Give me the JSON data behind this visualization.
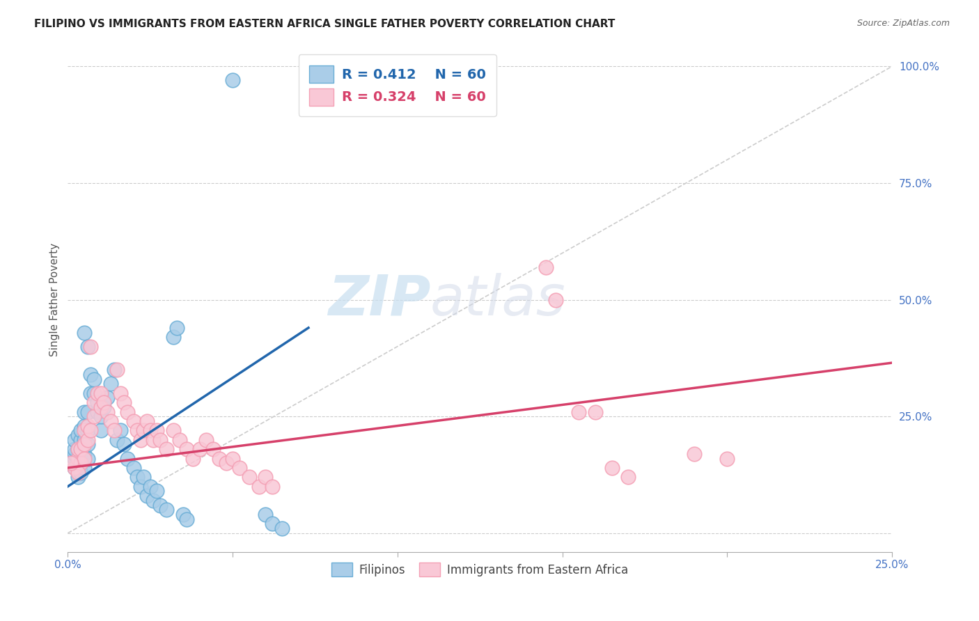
{
  "title": "FILIPINO VS IMMIGRANTS FROM EASTERN AFRICA SINGLE FATHER POVERTY CORRELATION CHART",
  "source": "Source: ZipAtlas.com",
  "ylabel": "Single Father Poverty",
  "xlim": [
    0.0,
    0.25
  ],
  "ylim": [
    -0.04,
    1.04
  ],
  "x_ticks": [
    0.0,
    0.05,
    0.1,
    0.15,
    0.2,
    0.25
  ],
  "x_tick_labels": [
    "0.0%",
    "",
    "",
    "",
    "",
    "25.0%"
  ],
  "y_ticks": [
    0.0,
    0.25,
    0.5,
    0.75,
    1.0
  ],
  "y_tick_labels": [
    "",
    "25.0%",
    "50.0%",
    "75.0%",
    "100.0%"
  ],
  "blue_color_face": "#aacde8",
  "blue_color_edge": "#6baed6",
  "pink_color_face": "#f9c8d6",
  "pink_color_edge": "#f4a0b5",
  "blue_line_color": "#2166ac",
  "pink_line_color": "#d6406a",
  "ref_line_color": "#cccccc",
  "grid_color": "#cccccc",
  "blue_scatter": [
    [
      0.002,
      0.14
    ],
    [
      0.002,
      0.16
    ],
    [
      0.002,
      0.17
    ],
    [
      0.002,
      0.18
    ],
    [
      0.002,
      0.2
    ],
    [
      0.003,
      0.12
    ],
    [
      0.003,
      0.14
    ],
    [
      0.003,
      0.16
    ],
    [
      0.003,
      0.18
    ],
    [
      0.003,
      0.21
    ],
    [
      0.004,
      0.13
    ],
    [
      0.004,
      0.15
    ],
    [
      0.004,
      0.17
    ],
    [
      0.004,
      0.2
    ],
    [
      0.004,
      0.22
    ],
    [
      0.005,
      0.14
    ],
    [
      0.005,
      0.17
    ],
    [
      0.005,
      0.2
    ],
    [
      0.005,
      0.23
    ],
    [
      0.005,
      0.26
    ],
    [
      0.006,
      0.16
    ],
    [
      0.006,
      0.19
    ],
    [
      0.006,
      0.22
    ],
    [
      0.006,
      0.26
    ],
    [
      0.007,
      0.3
    ],
    [
      0.007,
      0.34
    ],
    [
      0.008,
      0.3
    ],
    [
      0.008,
      0.33
    ],
    [
      0.009,
      0.26
    ],
    [
      0.009,
      0.28
    ],
    [
      0.01,
      0.22
    ],
    [
      0.01,
      0.25
    ],
    [
      0.011,
      0.27
    ],
    [
      0.012,
      0.29
    ],
    [
      0.013,
      0.32
    ],
    [
      0.014,
      0.35
    ],
    [
      0.015,
      0.2
    ],
    [
      0.016,
      0.22
    ],
    [
      0.017,
      0.19
    ],
    [
      0.018,
      0.16
    ],
    [
      0.02,
      0.14
    ],
    [
      0.021,
      0.12
    ],
    [
      0.022,
      0.1
    ],
    [
      0.023,
      0.12
    ],
    [
      0.024,
      0.08
    ],
    [
      0.025,
      0.1
    ],
    [
      0.026,
      0.07
    ],
    [
      0.027,
      0.09
    ],
    [
      0.028,
      0.06
    ],
    [
      0.03,
      0.05
    ],
    [
      0.032,
      0.42
    ],
    [
      0.033,
      0.44
    ],
    [
      0.05,
      0.97
    ],
    [
      0.005,
      0.43
    ],
    [
      0.006,
      0.4
    ],
    [
      0.035,
      0.04
    ],
    [
      0.036,
      0.03
    ],
    [
      0.06,
      0.04
    ],
    [
      0.062,
      0.02
    ],
    [
      0.065,
      0.01
    ]
  ],
  "pink_scatter": [
    [
      0.002,
      0.14
    ],
    [
      0.003,
      0.16
    ],
    [
      0.003,
      0.18
    ],
    [
      0.004,
      0.15
    ],
    [
      0.004,
      0.18
    ],
    [
      0.005,
      0.16
    ],
    [
      0.005,
      0.19
    ],
    [
      0.005,
      0.22
    ],
    [
      0.006,
      0.2
    ],
    [
      0.006,
      0.23
    ],
    [
      0.007,
      0.22
    ],
    [
      0.007,
      0.4
    ],
    [
      0.008,
      0.25
    ],
    [
      0.008,
      0.28
    ],
    [
      0.009,
      0.3
    ],
    [
      0.01,
      0.27
    ],
    [
      0.01,
      0.3
    ],
    [
      0.011,
      0.28
    ],
    [
      0.012,
      0.26
    ],
    [
      0.013,
      0.24
    ],
    [
      0.014,
      0.22
    ],
    [
      0.015,
      0.35
    ],
    [
      0.016,
      0.3
    ],
    [
      0.017,
      0.28
    ],
    [
      0.018,
      0.26
    ],
    [
      0.02,
      0.24
    ],
    [
      0.021,
      0.22
    ],
    [
      0.022,
      0.2
    ],
    [
      0.023,
      0.22
    ],
    [
      0.024,
      0.24
    ],
    [
      0.025,
      0.22
    ],
    [
      0.026,
      0.2
    ],
    [
      0.027,
      0.22
    ],
    [
      0.028,
      0.2
    ],
    [
      0.03,
      0.18
    ],
    [
      0.032,
      0.22
    ],
    [
      0.034,
      0.2
    ],
    [
      0.036,
      0.18
    ],
    [
      0.038,
      0.16
    ],
    [
      0.04,
      0.18
    ],
    [
      0.042,
      0.2
    ],
    [
      0.044,
      0.18
    ],
    [
      0.046,
      0.16
    ],
    [
      0.048,
      0.15
    ],
    [
      0.05,
      0.16
    ],
    [
      0.052,
      0.14
    ],
    [
      0.055,
      0.12
    ],
    [
      0.058,
      0.1
    ],
    [
      0.06,
      0.12
    ],
    [
      0.062,
      0.1
    ],
    [
      0.145,
      0.57
    ],
    [
      0.148,
      0.5
    ],
    [
      0.155,
      0.26
    ],
    [
      0.16,
      0.26
    ],
    [
      0.165,
      0.14
    ],
    [
      0.17,
      0.12
    ],
    [
      0.19,
      0.17
    ],
    [
      0.2,
      0.16
    ],
    [
      0.003,
      0.13
    ],
    [
      0.001,
      0.15
    ]
  ],
  "blue_line_x0": 0.0,
  "blue_line_x1": 0.073,
  "blue_line_y0": 0.1,
  "blue_line_y1": 0.44,
  "pink_line_x0": 0.0,
  "pink_line_x1": 0.25,
  "pink_line_y0": 0.14,
  "pink_line_y1": 0.365,
  "ref_line_x0": 0.0,
  "ref_line_x1": 0.25,
  "ref_line_y0": 0.0,
  "ref_line_y1": 1.0,
  "legend_label_blue": "Filipinos",
  "legend_label_pink": "Immigrants from Eastern Africa",
  "legend_R_blue": "R = 0.412",
  "legend_N_blue": "N = 60",
  "legend_R_pink": "R = 0.324",
  "legend_N_pink": "N = 60",
  "watermark_zip": "ZIP",
  "watermark_atlas": "atlas",
  "background_color": "#ffffff"
}
